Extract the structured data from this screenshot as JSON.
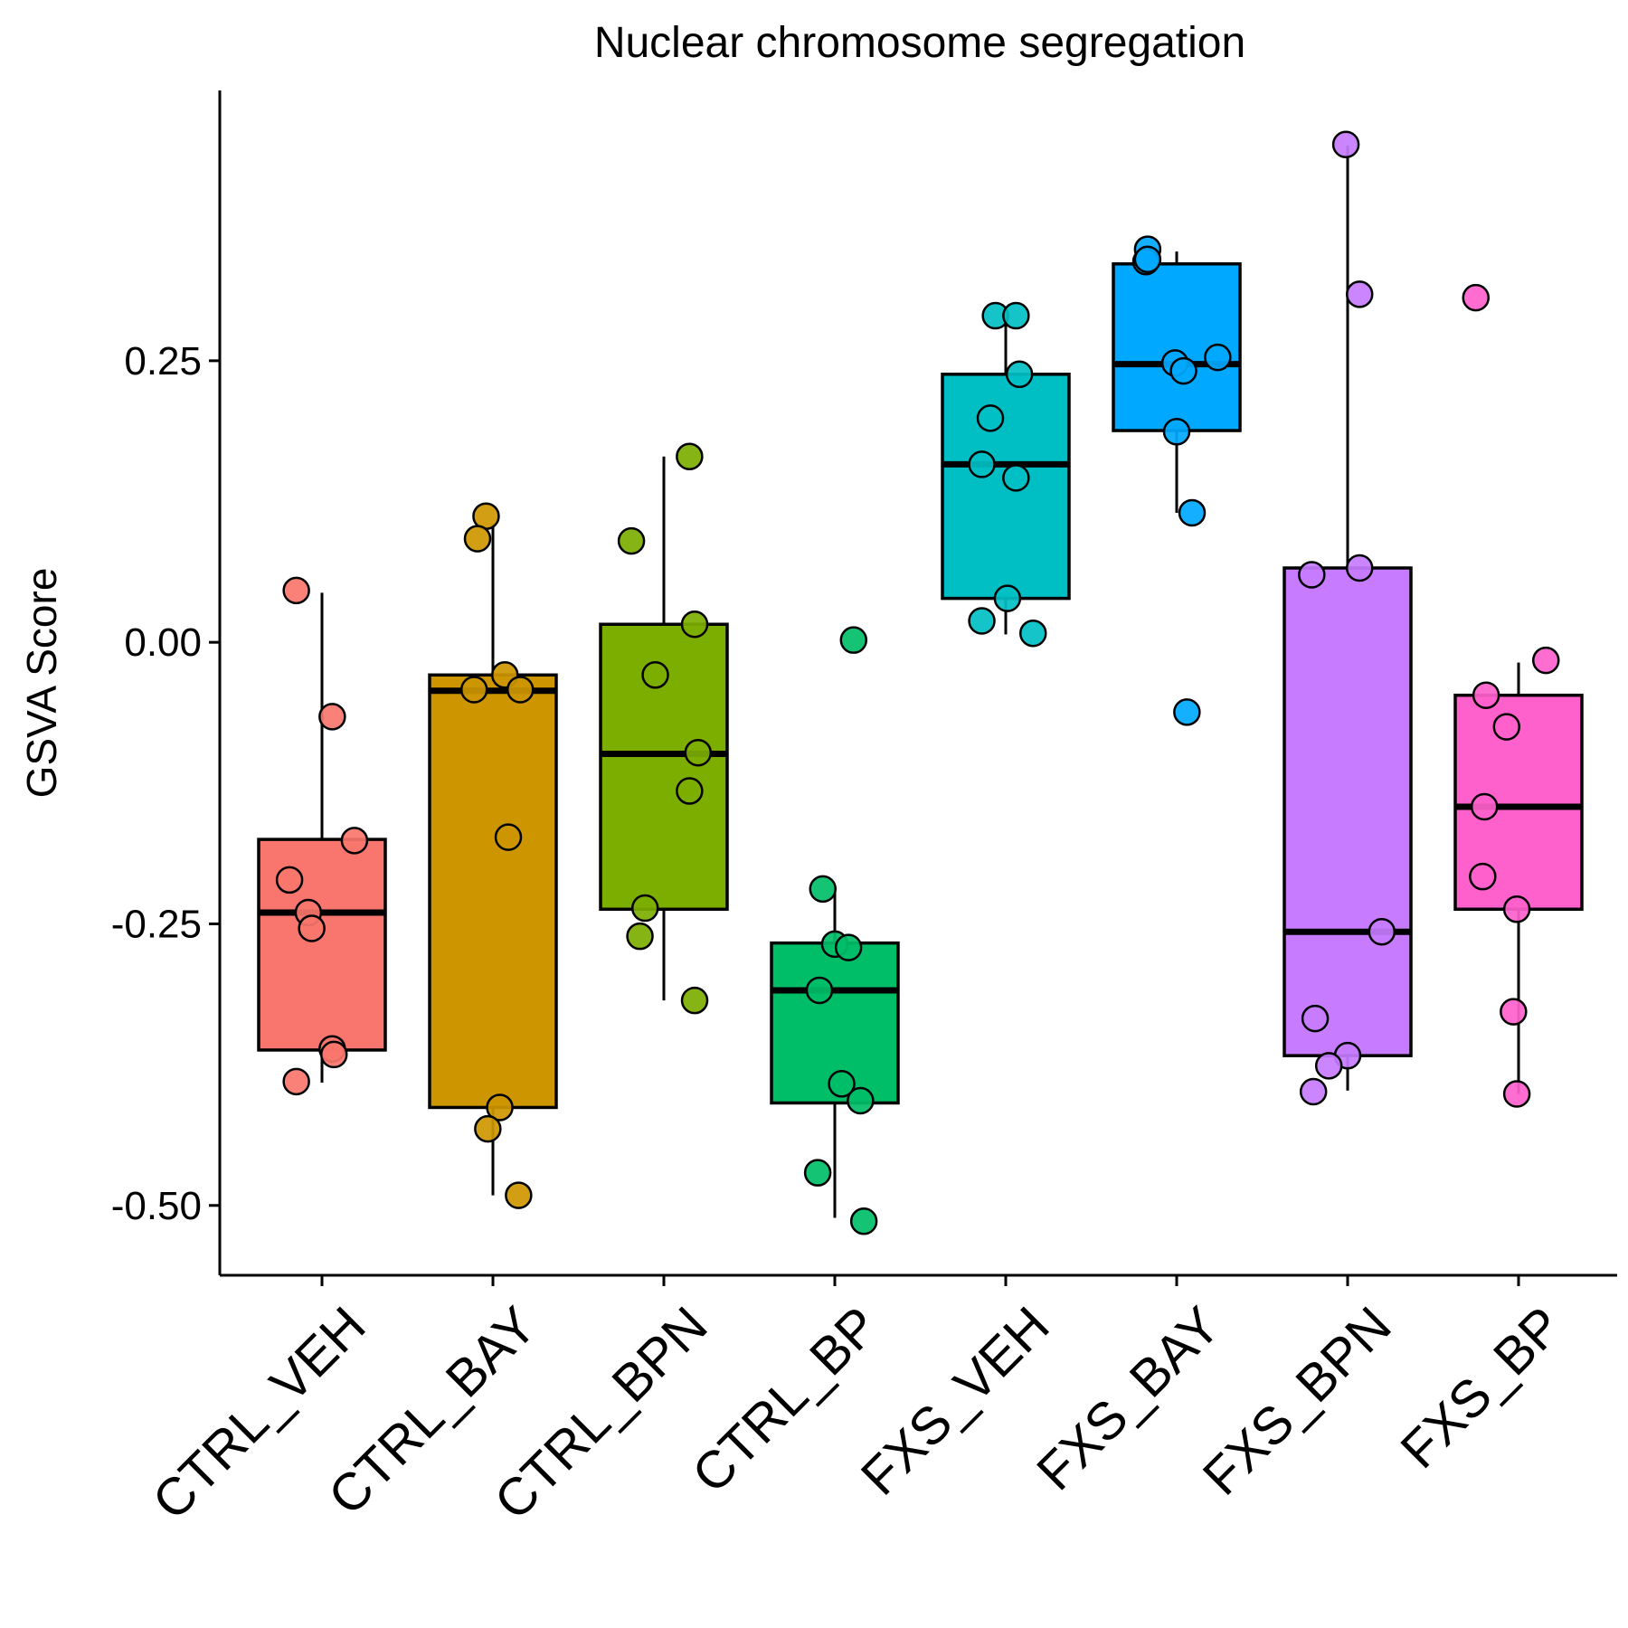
{
  "chart_data": {
    "type": "box",
    "title": "Nuclear chromosome segregation",
    "xlabel": "",
    "ylabel": "GSVA Score",
    "ylim": [
      -0.562,
      0.49
    ],
    "yticks": [
      -0.5,
      -0.25,
      0.0,
      0.25
    ],
    "ytick_labels": [
      "-0.50",
      "-0.25",
      "0.00",
      "0.25"
    ],
    "grid": false,
    "legend": "none",
    "categories": [
      "CTRL_VEH",
      "CTRL_BAY",
      "CTRL_BPN",
      "CTRL_BP",
      "FXS_VEH",
      "FXS_BAY",
      "FXS_BPN",
      "FXS_BP"
    ],
    "groups": [
      {
        "name": "CTRL_VEH",
        "color": "#F8766D",
        "box": {
          "whisker_low": -0.391,
          "q1": -0.362,
          "median": -0.24,
          "q3": -0.175,
          "whisker_high": 0.044
        },
        "points": [
          {
            "offset": -0.15,
            "value": 0.046
          },
          {
            "offset": 0.06,
            "value": -0.066
          },
          {
            "offset": 0.19,
            "value": -0.176
          },
          {
            "offset": -0.19,
            "value": -0.211
          },
          {
            "offset": -0.08,
            "value": -0.24
          },
          {
            "offset": -0.06,
            "value": -0.254
          },
          {
            "offset": 0.06,
            "value": -0.361
          },
          {
            "offset": 0.07,
            "value": -0.366
          },
          {
            "offset": -0.15,
            "value": -0.39
          }
        ]
      },
      {
        "name": "CTRL_BAY",
        "color": "#CD9600",
        "box": {
          "whisker_low": -0.491,
          "q1": -0.413,
          "median": -0.043,
          "q3": -0.029,
          "whisker_high": 0.105
        },
        "points": [
          {
            "offset": -0.04,
            "value": 0.112
          },
          {
            "offset": -0.09,
            "value": 0.092
          },
          {
            "offset": 0.07,
            "value": -0.029
          },
          {
            "offset": -0.11,
            "value": -0.042
          },
          {
            "offset": 0.16,
            "value": -0.042
          },
          {
            "offset": 0.09,
            "value": -0.173
          },
          {
            "offset": 0.04,
            "value": -0.413
          },
          {
            "offset": -0.03,
            "value": -0.432
          },
          {
            "offset": 0.15,
            "value": -0.491
          }
        ]
      },
      {
        "name": "CTRL_BPN",
        "color": "#7CAE00",
        "box": {
          "whisker_low": -0.318,
          "q1": -0.237,
          "median": -0.099,
          "q3": 0.016,
          "whisker_high": 0.165
        },
        "points": [
          {
            "offset": 0.15,
            "value": 0.165
          },
          {
            "offset": -0.19,
            "value": 0.09
          },
          {
            "offset": 0.18,
            "value": 0.016
          },
          {
            "offset": -0.05,
            "value": -0.029
          },
          {
            "offset": 0.2,
            "value": -0.098
          },
          {
            "offset": 0.15,
            "value": -0.132
          },
          {
            "offset": -0.11,
            "value": -0.236
          },
          {
            "offset": -0.14,
            "value": -0.261
          },
          {
            "offset": 0.18,
            "value": -0.318
          }
        ]
      },
      {
        "name": "CTRL_BP",
        "color": "#00BE67",
        "box": {
          "whisker_low": -0.511,
          "q1": -0.409,
          "median": -0.309,
          "q3": -0.267,
          "whisker_high": -0.219
        },
        "points": [
          {
            "offset": 0.11,
            "value": 0.002
          },
          {
            "offset": -0.07,
            "value": -0.219
          },
          {
            "offset": 0.0,
            "value": -0.268
          },
          {
            "offset": 0.08,
            "value": -0.271
          },
          {
            "offset": -0.09,
            "value": -0.309
          },
          {
            "offset": 0.04,
            "value": -0.392
          },
          {
            "offset": 0.15,
            "value": -0.407
          },
          {
            "offset": -0.1,
            "value": -0.471
          },
          {
            "offset": 0.17,
            "value": -0.514
          }
        ]
      },
      {
        "name": "FXS_VEH",
        "color": "#00BFC4",
        "box": {
          "whisker_low": 0.007,
          "q1": 0.039,
          "median": 0.158,
          "q3": 0.238,
          "whisker_high": 0.29
        },
        "points": [
          {
            "offset": -0.06,
            "value": 0.29
          },
          {
            "offset": 0.06,
            "value": 0.29
          },
          {
            "offset": 0.08,
            "value": 0.238
          },
          {
            "offset": -0.09,
            "value": 0.199
          },
          {
            "offset": -0.14,
            "value": 0.158
          },
          {
            "offset": 0.06,
            "value": 0.146
          },
          {
            "offset": 0.01,
            "value": 0.039
          },
          {
            "offset": -0.14,
            "value": 0.019
          },
          {
            "offset": 0.16,
            "value": 0.008
          }
        ]
      },
      {
        "name": "FXS_BAY",
        "color": "#00A9FF",
        "box": {
          "whisker_low": 0.115,
          "q1": 0.188,
          "median": 0.247,
          "q3": 0.336,
          "whisker_high": 0.347
        },
        "points": [
          {
            "offset": -0.17,
            "value": 0.349
          },
          {
            "offset": -0.18,
            "value": 0.338
          },
          {
            "offset": -0.17,
            "value": 0.34
          },
          {
            "offset": -0.01,
            "value": 0.248
          },
          {
            "offset": 0.24,
            "value": 0.253
          },
          {
            "offset": 0.04,
            "value": 0.241
          },
          {
            "offset": 0.0,
            "value": 0.187
          },
          {
            "offset": 0.09,
            "value": 0.115
          },
          {
            "offset": 0.06,
            "value": -0.062
          }
        ]
      },
      {
        "name": "FXS_BPN",
        "color": "#C77CFF",
        "box": {
          "whisker_low": -0.398,
          "q1": -0.367,
          "median": -0.257,
          "q3": 0.066,
          "whisker_high": 0.441
        },
        "points": [
          {
            "offset": -0.01,
            "value": 0.442
          },
          {
            "offset": 0.07,
            "value": 0.309
          },
          {
            "offset": 0.07,
            "value": 0.066
          },
          {
            "offset": -0.21,
            "value": 0.06
          },
          {
            "offset": 0.2,
            "value": -0.257
          },
          {
            "offset": -0.19,
            "value": -0.334
          },
          {
            "offset": 0.0,
            "value": -0.367
          },
          {
            "offset": -0.11,
            "value": -0.376
          },
          {
            "offset": -0.2,
            "value": -0.399
          }
        ]
      },
      {
        "name": "FXS_BP",
        "color": "#FF61CC",
        "box": {
          "whisker_low": -0.401,
          "q1": -0.237,
          "median": -0.146,
          "q3": -0.047,
          "whisker_high": -0.018
        },
        "points": [
          {
            "offset": -0.25,
            "value": 0.306
          },
          {
            "offset": 0.16,
            "value": -0.016
          },
          {
            "offset": -0.19,
            "value": -0.047
          },
          {
            "offset": -0.07,
            "value": -0.075
          },
          {
            "offset": -0.2,
            "value": -0.146
          },
          {
            "offset": -0.21,
            "value": -0.208
          },
          {
            "offset": -0.01,
            "value": -0.237
          },
          {
            "offset": -0.03,
            "value": -0.328
          },
          {
            "offset": -0.01,
            "value": -0.401
          }
        ]
      }
    ]
  }
}
